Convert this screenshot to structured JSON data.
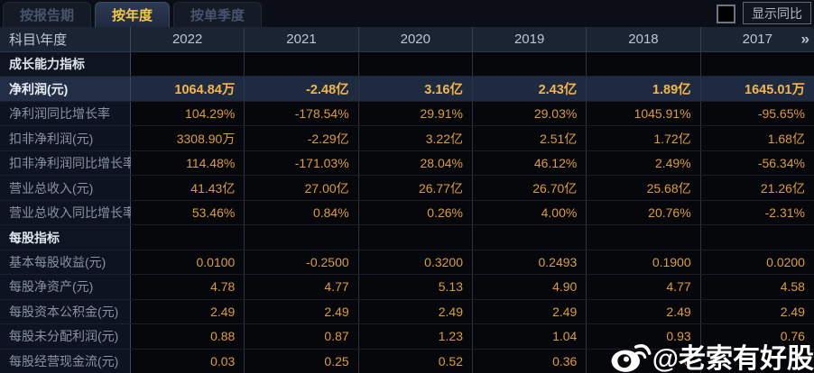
{
  "tabs": [
    {
      "label": "按报告期",
      "active": false
    },
    {
      "label": "按年度",
      "active": true
    },
    {
      "label": "按单季度",
      "active": false
    }
  ],
  "controls": {
    "compare_checkbox_checked": false,
    "compare_label": "显示同比"
  },
  "table": {
    "corner_label": "科目\\年度",
    "years": [
      "2022",
      "2021",
      "2020",
      "2019",
      "2018",
      "2017"
    ],
    "more_icon": "»",
    "rows": [
      {
        "type": "section",
        "label": "成长能力指标",
        "values": [
          "",
          "",
          "",
          "",
          "",
          ""
        ]
      },
      {
        "type": "data",
        "highlight": true,
        "label": "净利润(元)",
        "values": [
          "1064.84万",
          "-2.48亿",
          "3.16亿",
          "2.43亿",
          "1.89亿",
          "1645.01万"
        ]
      },
      {
        "type": "data",
        "label": "净利润同比增长率",
        "values": [
          "104.29%",
          "-178.54%",
          "29.91%",
          "29.03%",
          "1045.91%",
          "-95.65%"
        ]
      },
      {
        "type": "data",
        "label": "扣非净利润(元)",
        "values": [
          "3308.90万",
          "-2.29亿",
          "3.22亿",
          "2.51亿",
          "1.72亿",
          "1.68亿"
        ]
      },
      {
        "type": "data",
        "label": "扣非净利润同比增长率",
        "values": [
          "114.48%",
          "-171.03%",
          "28.04%",
          "46.12%",
          "2.49%",
          "-56.34%"
        ]
      },
      {
        "type": "data",
        "label": "营业总收入(元)",
        "values": [
          "41.43亿",
          "27.00亿",
          "26.77亿",
          "26.70亿",
          "25.68亿",
          "21.26亿"
        ]
      },
      {
        "type": "data",
        "label": "营业总收入同比增长率",
        "values": [
          "53.46%",
          "0.84%",
          "0.26%",
          "4.00%",
          "20.76%",
          "-2.31%"
        ]
      },
      {
        "type": "section",
        "label": "每股指标",
        "values": [
          "",
          "",
          "",
          "",
          "",
          ""
        ]
      },
      {
        "type": "data",
        "label": "基本每股收益(元)",
        "values": [
          "0.0100",
          "-0.2500",
          "0.3200",
          "0.2493",
          "0.1900",
          "0.0200"
        ]
      },
      {
        "type": "data",
        "label": "每股净资产(元)",
        "values": [
          "4.78",
          "4.77",
          "5.13",
          "4.90",
          "4.77",
          "4.58"
        ]
      },
      {
        "type": "data",
        "label": "每股资本公积金(元)",
        "values": [
          "2.49",
          "2.49",
          "2.49",
          "2.49",
          "2.49",
          "2.49"
        ]
      },
      {
        "type": "data",
        "label": "每股未分配利润(元)",
        "values": [
          "0.88",
          "0.87",
          "1.23",
          "1.04",
          "0.93",
          "0.76"
        ]
      },
      {
        "type": "data",
        "label": "每股经营现金流(元)",
        "values": [
          "0.03",
          "0.25",
          "0.52",
          "0.36",
          "0",
          ""
        ]
      }
    ]
  },
  "watermark": {
    "text": "@老索有好股",
    "icon": "weibo"
  },
  "colors": {
    "accent_gold": "#f4c645",
    "value_orange": "#dd9c3e",
    "highlight_row_bg": "#1e2a40",
    "header_bg": "#1b2433",
    "label_cell_bg": "#0d1320",
    "data_cell_bg": "#05070a"
  }
}
